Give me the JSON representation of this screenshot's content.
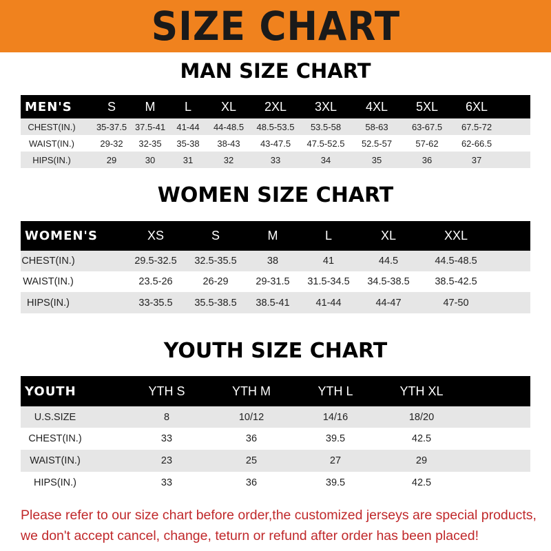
{
  "banner": "SIZE CHART",
  "colors": {
    "banner": "#f0821e",
    "header_row": "#000000",
    "shaded_row": "#e6e6e6",
    "note": "#c0282a"
  },
  "men": {
    "title": "MAN SIZE CHART",
    "header": [
      "MEN'S",
      "S",
      "M",
      "L",
      "XL",
      "2XL",
      "3XL",
      "4XL",
      "5XL",
      "6XL"
    ],
    "rows": [
      [
        "CHEST(IN.)",
        "35-37.5",
        "37.5-41",
        "41-44",
        "44-48.5",
        "48.5-53.5",
        "53.5-58",
        "58-63",
        "63-67.5",
        "67.5-72"
      ],
      [
        "WAIST(IN.)",
        "29-32",
        "32-35",
        "35-38",
        "38-43",
        "43-47.5",
        "47.5-52.5",
        "52.5-57",
        "57-62",
        "62-66.5"
      ],
      [
        "HIPS(IN.)",
        "29",
        "30",
        "31",
        "32",
        "33",
        "34",
        "35",
        "36",
        "37"
      ]
    ]
  },
  "women": {
    "title": "WOMEN SIZE CHART",
    "header": [
      "WOMEN'S",
      "XS",
      "S",
      "M",
      "L",
      "XL",
      "XXL"
    ],
    "rows": [
      [
        "CHEST(IN.)",
        "29.5-32.5",
        "32.5-35.5",
        "38",
        "41",
        "44.5",
        "44.5-48.5"
      ],
      [
        "WAIST(IN.)",
        "23.5-26",
        "26-29",
        "29-31.5",
        "31.5-34.5",
        "34.5-38.5",
        "38.5-42.5"
      ],
      [
        "HIPS(IN.)",
        "33-35.5",
        "35.5-38.5",
        "38.5-41",
        "41-44",
        "44-47",
        "47-50"
      ]
    ]
  },
  "youth": {
    "title": "YOUTH SIZE CHART",
    "header": [
      "YOUTH",
      "YTH S",
      "YTH M",
      "YTH L",
      "YTH XL"
    ],
    "rows": [
      [
        "U.S.SIZE",
        "8",
        "10/12",
        "14/16",
        "18/20"
      ],
      [
        "CHEST(IN.)",
        "33",
        "36",
        "39.5",
        "42.5"
      ],
      [
        "WAIST(IN.)",
        "23",
        "25",
        "27",
        "29"
      ],
      [
        "HIPS(IN.)",
        "33",
        "36",
        "39.5",
        "42.5"
      ]
    ]
  },
  "note": [
    "Please refer to our size chart before order,the customized jerseys are special products,",
    "we don't accept cancel, change, teturn or refund after order has been placed!"
  ]
}
